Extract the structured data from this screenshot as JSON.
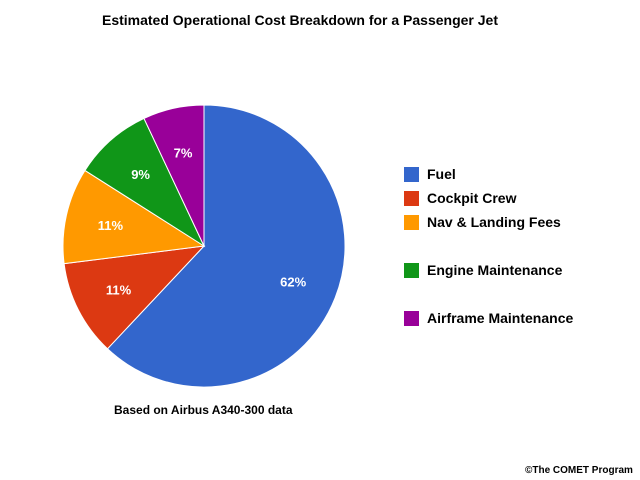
{
  "chart_data": {
    "type": "pie",
    "title": "Estimated Operational Cost Breakdown for a Passenger Jet",
    "note": "Based on Airbus A340-300 data",
    "legend_position": "right",
    "slices": [
      {
        "label": "Fuel",
        "value": 62,
        "display": "62%",
        "color": "#3366cc"
      },
      {
        "label": "Cockpit Crew",
        "value": 11,
        "display": "11%",
        "color": "#dc3912"
      },
      {
        "label": "Nav & Landing Fees",
        "value": 11,
        "display": "11%",
        "color": "#ff9900"
      },
      {
        "label": "Engine Maintenance",
        "value": 9,
        "display": "9%",
        "color": "#109618"
      },
      {
        "label": "Airframe Maintenance",
        "value": 7,
        "display": "7%",
        "color": "#990099"
      }
    ]
  },
  "footer": {
    "copyright": "©The COMET Program"
  }
}
